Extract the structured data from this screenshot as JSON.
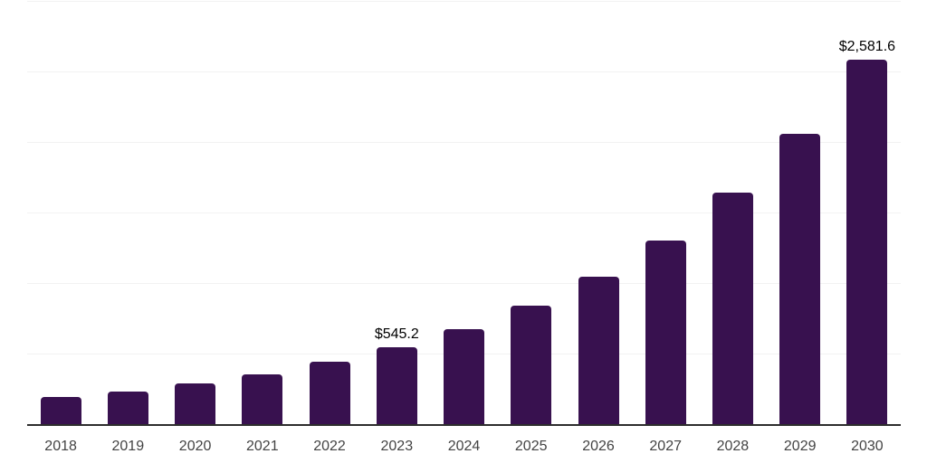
{
  "chart_data": {
    "type": "bar",
    "title": "",
    "xlabel": "",
    "ylabel": "",
    "categories": [
      "2018",
      "2019",
      "2020",
      "2021",
      "2022",
      "2023",
      "2024",
      "2025",
      "2026",
      "2027",
      "2028",
      "2029",
      "2030"
    ],
    "values": [
      192,
      231,
      290,
      352,
      442,
      545.2,
      675,
      842,
      1045,
      1302,
      1640,
      2058,
      2581.6
    ],
    "data_labels": [
      "",
      "",
      "",
      "",
      "",
      "$545.2",
      "",
      "",
      "",
      "",
      "",
      "",
      "$2,581.6"
    ],
    "ylim": [
      0,
      3000
    ],
    "gridline_step": 500,
    "grid": true,
    "legend": false,
    "y_axis_tick_labels_visible": false,
    "colors": {
      "bar": "#38114f",
      "gridline": "#f2f2f2",
      "axis_line": "#2d2d2d",
      "x_tick_label": "#434343",
      "data_label": "#000000",
      "background": "#ffffff"
    }
  }
}
